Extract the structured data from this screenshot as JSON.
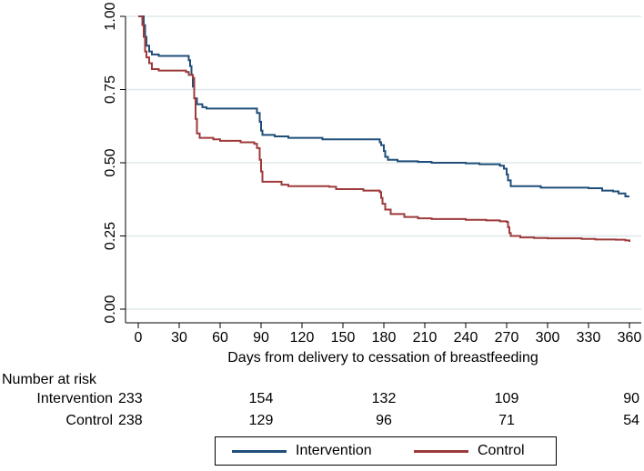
{
  "chart_data": {
    "type": "line",
    "step": true,
    "xlabel": "Days from delivery to cessation of breastfeeding",
    "ylabel": "",
    "xlim": [
      0,
      360
    ],
    "ylim": [
      0,
      1
    ],
    "xticks": [
      "0",
      "30",
      "60",
      "90",
      "120",
      "150",
      "180",
      "210",
      "240",
      "270",
      "300",
      "330",
      "360"
    ],
    "yticks": [
      "0.00",
      "0.25",
      "0.50",
      "0.75",
      "1.00"
    ],
    "grid": "horizontal",
    "series": [
      {
        "name": "Intervention",
        "color": "#1f4e79",
        "points": [
          [
            0,
            1.0
          ],
          [
            3,
            1.0
          ],
          [
            4,
            0.97
          ],
          [
            5,
            0.93
          ],
          [
            6,
            0.9
          ],
          [
            8,
            0.88
          ],
          [
            10,
            0.87
          ],
          [
            15,
            0.865
          ],
          [
            35,
            0.865
          ],
          [
            37,
            0.85
          ],
          [
            38,
            0.83
          ],
          [
            39,
            0.8
          ],
          [
            40,
            0.76
          ],
          [
            41,
            0.72
          ],
          [
            43,
            0.7
          ],
          [
            47,
            0.69
          ],
          [
            50,
            0.685
          ],
          [
            85,
            0.685
          ],
          [
            87,
            0.67
          ],
          [
            89,
            0.64
          ],
          [
            90,
            0.61
          ],
          [
            91,
            0.595
          ],
          [
            100,
            0.59
          ],
          [
            110,
            0.585
          ],
          [
            125,
            0.585
          ],
          [
            135,
            0.58
          ],
          [
            175,
            0.58
          ],
          [
            177,
            0.57
          ],
          [
            178,
            0.56
          ],
          [
            180,
            0.54
          ],
          [
            181,
            0.52
          ],
          [
            183,
            0.51
          ],
          [
            190,
            0.505
          ],
          [
            205,
            0.503
          ],
          [
            215,
            0.5
          ],
          [
            240,
            0.498
          ],
          [
            250,
            0.495
          ],
          [
            265,
            0.49
          ],
          [
            268,
            0.48
          ],
          [
            270,
            0.46
          ],
          [
            271,
            0.44
          ],
          [
            273,
            0.42
          ],
          [
            290,
            0.42
          ],
          [
            295,
            0.415
          ],
          [
            330,
            0.413
          ],
          [
            340,
            0.405
          ],
          [
            348,
            0.402
          ],
          [
            352,
            0.395
          ],
          [
            357,
            0.385
          ],
          [
            360,
            0.385
          ]
        ]
      },
      {
        "name": "Control",
        "color": "#9e3a3a",
        "points": [
          [
            0,
            1.0
          ],
          [
            2,
            1.0
          ],
          [
            3,
            0.97
          ],
          [
            4,
            0.93
          ],
          [
            5,
            0.88
          ],
          [
            6,
            0.86
          ],
          [
            8,
            0.84
          ],
          [
            10,
            0.82
          ],
          [
            15,
            0.815
          ],
          [
            32,
            0.815
          ],
          [
            35,
            0.81
          ],
          [
            37,
            0.8
          ],
          [
            40,
            0.79
          ],
          [
            41,
            0.72
          ],
          [
            42,
            0.65
          ],
          [
            43,
            0.6
          ],
          [
            45,
            0.585
          ],
          [
            55,
            0.58
          ],
          [
            60,
            0.575
          ],
          [
            75,
            0.57
          ],
          [
            85,
            0.565
          ],
          [
            87,
            0.55
          ],
          [
            89,
            0.51
          ],
          [
            90,
            0.47
          ],
          [
            91,
            0.435
          ],
          [
            100,
            0.435
          ],
          [
            105,
            0.425
          ],
          [
            110,
            0.42
          ],
          [
            140,
            0.418
          ],
          [
            145,
            0.41
          ],
          [
            165,
            0.405
          ],
          [
            177,
            0.4
          ],
          [
            178,
            0.38
          ],
          [
            179,
            0.36
          ],
          [
            181,
            0.34
          ],
          [
            185,
            0.325
          ],
          [
            195,
            0.315
          ],
          [
            205,
            0.31
          ],
          [
            215,
            0.308
          ],
          [
            240,
            0.305
          ],
          [
            255,
            0.303
          ],
          [
            265,
            0.3
          ],
          [
            270,
            0.298
          ],
          [
            271,
            0.28
          ],
          [
            272,
            0.26
          ],
          [
            273,
            0.25
          ],
          [
            280,
            0.245
          ],
          [
            290,
            0.243
          ],
          [
            300,
            0.242
          ],
          [
            325,
            0.24
          ],
          [
            335,
            0.238
          ],
          [
            350,
            0.237
          ],
          [
            357,
            0.235
          ],
          [
            360,
            0.23
          ]
        ]
      }
    ],
    "legend": {
      "position": "bottom",
      "items": [
        {
          "label": "Intervention",
          "color": "#1f4e79"
        },
        {
          "label": "Control",
          "color": "#9e3a3a"
        }
      ]
    },
    "risk_table": {
      "title": "Number at risk",
      "days": [
        0,
        90,
        180,
        270,
        360
      ],
      "rows": [
        {
          "label": "Intervention",
          "values": [
            "233",
            "154",
            "132",
            "109",
            "90"
          ]
        },
        {
          "label": "Control",
          "values": [
            "238",
            "129",
            "96",
            "71",
            "54"
          ]
        }
      ]
    }
  }
}
